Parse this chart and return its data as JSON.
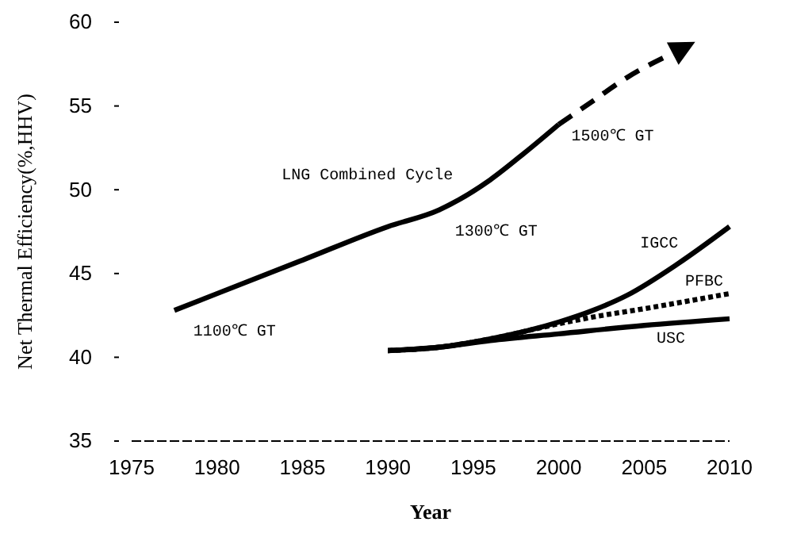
{
  "chart_data": {
    "type": "line",
    "xlabel": "Year",
    "ylabel": "Net Thermal Efficiency(%,HHV)",
    "xlim": [
      1975,
      2010
    ],
    "xticks": [
      1975,
      1980,
      1985,
      1990,
      1995,
      2000,
      2005,
      2010
    ],
    "ylim": [
      35,
      60
    ],
    "yticks": [
      35,
      40,
      45,
      50,
      55,
      60
    ],
    "grid": false,
    "series": [
      {
        "color": "#000000",
        "line_style": "solid",
        "x": [
          1977.5,
          1980,
          1985,
          1990,
          1993,
          1996,
          1998,
          2000
        ],
        "values": [
          42.8,
          43.8,
          45.8,
          47.8,
          48.8,
          50.6,
          52.2,
          53.9
        ]
      },
      {
        "color": "#000000",
        "line_style": "dashed",
        "x": [
          2000,
          2002,
          2004,
          2007
        ],
        "values": [
          53.9,
          55.3,
          56.7,
          58.3
        ]
      },
      {
        "color": "#000000",
        "line_style": "solid",
        "x": [
          1990,
          1993,
          1996,
          2000,
          2002,
          2004,
          2007,
          2010
        ],
        "values": [
          40.4,
          40.6,
          41.1,
          42.1,
          42.8,
          43.7,
          45.6,
          47.8
        ]
      },
      {
        "color": "#000000",
        "line_style": "dotted",
        "x": [
          1990,
          1993,
          1996,
          2000,
          2002,
          2005,
          2010
        ],
        "values": [
          40.4,
          40.6,
          41.1,
          42.0,
          42.4,
          42.9,
          43.8
        ]
      },
      {
        "color": "#000000",
        "line_style": "solid",
        "x": [
          1990,
          1993,
          1996,
          2000,
          2005,
          2010
        ],
        "values": [
          40.4,
          40.6,
          41.0,
          41.4,
          41.9,
          42.3
        ]
      }
    ],
    "annotations": [
      {
        "text": "LNG Combined Cycle",
        "x": 1994,
        "y": 49.3
      },
      {
        "text": "1100℃ GT",
        "x": 1977.5,
        "y": 42.8
      },
      {
        "text": "1300℃ GT",
        "x": 1993,
        "y": 48.8
      },
      {
        "text": "1500℃ GT",
        "x": 2000,
        "y": 53.9
      },
      {
        "text": "IGCC",
        "x": 2007,
        "y": 45.6
      },
      {
        "text": "PFBC",
        "x": 2010,
        "y": 43.8
      },
      {
        "text": "USC",
        "x": 2010,
        "y": 42.3
      }
    ]
  }
}
